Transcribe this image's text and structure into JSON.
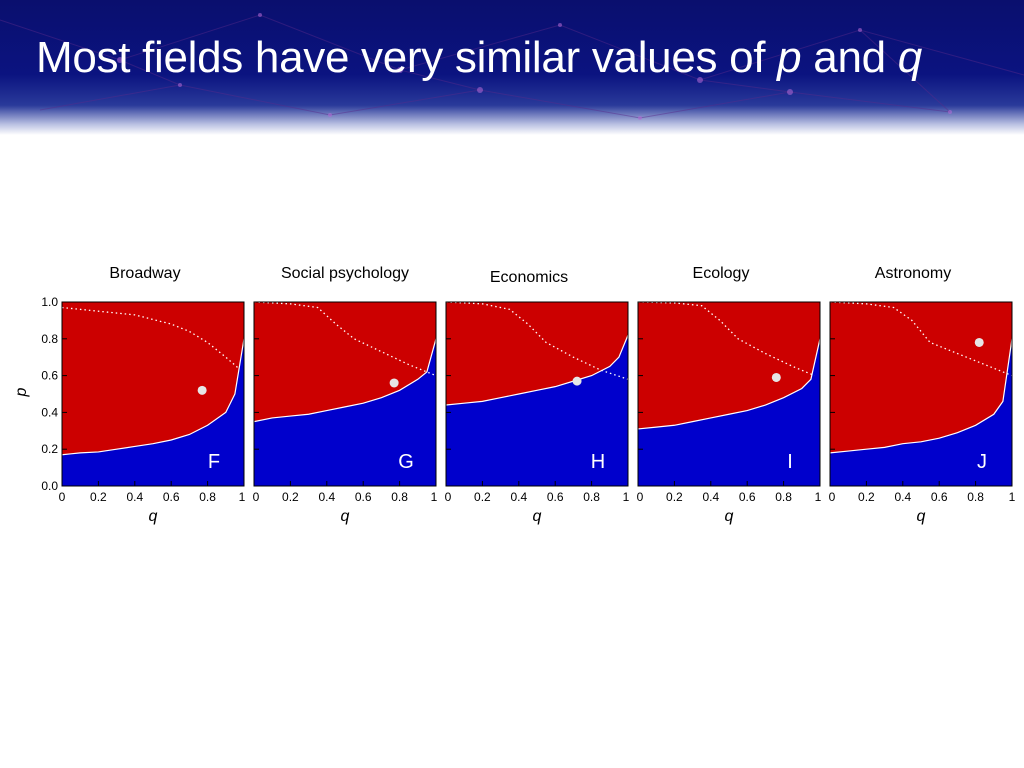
{
  "slide": {
    "title_pre": "Most fields have very similar values of ",
    "title_var1": "p",
    "title_mid": " and ",
    "title_var2": "q"
  },
  "colors": {
    "banner": "#0b1380",
    "upper_region": "#cc0000",
    "lower_region": "#0000cc",
    "boundary": "#ffffff",
    "marker": "#e6e6e6"
  },
  "chart_data": [
    {
      "type": "area",
      "title": "Broadway",
      "panel_label": "F",
      "xlabel": "q",
      "ylabel": "p",
      "xlim": [
        0,
        1
      ],
      "ylim": [
        0,
        1
      ],
      "x_ticks": [
        "0",
        "0.2",
        "0.4",
        "0.6",
        "0.8",
        "1"
      ],
      "y_ticks": [
        "0.0",
        "0.2",
        "0.4",
        "0.6",
        "0.8",
        "1.0"
      ],
      "boundary": [
        [
          0,
          0.17
        ],
        [
          0.05,
          0.175
        ],
        [
          0.1,
          0.18
        ],
        [
          0.2,
          0.185
        ],
        [
          0.3,
          0.2
        ],
        [
          0.4,
          0.215
        ],
        [
          0.5,
          0.23
        ],
        [
          0.6,
          0.25
        ],
        [
          0.7,
          0.28
        ],
        [
          0.8,
          0.33
        ],
        [
          0.9,
          0.4
        ],
        [
          0.95,
          0.5
        ],
        [
          1,
          0.8
        ]
      ],
      "dotted_curve": [
        [
          0,
          0.97
        ],
        [
          0.2,
          0.95
        ],
        [
          0.4,
          0.93
        ],
        [
          0.6,
          0.88
        ],
        [
          0.7,
          0.84
        ],
        [
          0.8,
          0.78
        ],
        [
          0.9,
          0.7
        ],
        [
          0.97,
          0.64
        ]
      ],
      "point": [
        0.77,
        0.52
      ]
    },
    {
      "type": "area",
      "title": "Social psychology",
      "panel_label": "G",
      "xlabel": "q",
      "ylabel": "p",
      "xlim": [
        0,
        1
      ],
      "ylim": [
        0,
        1
      ],
      "x_ticks": [
        "0",
        "0.2",
        "0.4",
        "0.6",
        "0.8",
        "1"
      ],
      "y_ticks": [
        "0.0",
        "0.2",
        "0.4",
        "0.6",
        "0.8",
        "1.0"
      ],
      "boundary": [
        [
          0,
          0.35
        ],
        [
          0.1,
          0.37
        ],
        [
          0.2,
          0.38
        ],
        [
          0.3,
          0.39
        ],
        [
          0.4,
          0.41
        ],
        [
          0.5,
          0.43
        ],
        [
          0.6,
          0.45
        ],
        [
          0.7,
          0.48
        ],
        [
          0.8,
          0.52
        ],
        [
          0.9,
          0.58
        ],
        [
          0.95,
          0.62
        ],
        [
          1,
          0.8
        ]
      ],
      "dotted_curve": [
        [
          0,
          1
        ],
        [
          0.2,
          0.99
        ],
        [
          0.35,
          0.97
        ],
        [
          0.45,
          0.88
        ],
        [
          0.55,
          0.8
        ],
        [
          0.7,
          0.73
        ],
        [
          0.85,
          0.66
        ],
        [
          1,
          0.6
        ]
      ],
      "point": [
        0.77,
        0.56
      ]
    },
    {
      "type": "area",
      "title": "Economics",
      "panel_label": "H",
      "xlabel": "q",
      "ylabel": "p",
      "xlim": [
        0,
        1
      ],
      "ylim": [
        0,
        1
      ],
      "x_ticks": [
        "0",
        "0.2",
        "0.4",
        "0.6",
        "0.8",
        "1"
      ],
      "y_ticks": [
        "0.0",
        "0.2",
        "0.4",
        "0.6",
        "0.8",
        "1.0"
      ],
      "boundary": [
        [
          0,
          0.44
        ],
        [
          0.1,
          0.45
        ],
        [
          0.2,
          0.46
        ],
        [
          0.3,
          0.48
        ],
        [
          0.4,
          0.5
        ],
        [
          0.5,
          0.52
        ],
        [
          0.6,
          0.54
        ],
        [
          0.7,
          0.57
        ],
        [
          0.8,
          0.6
        ],
        [
          0.9,
          0.65
        ],
        [
          0.95,
          0.7
        ],
        [
          1,
          0.82
        ]
      ],
      "dotted_curve": [
        [
          0,
          1
        ],
        [
          0.2,
          0.99
        ],
        [
          0.35,
          0.96
        ],
        [
          0.45,
          0.88
        ],
        [
          0.55,
          0.78
        ],
        [
          0.7,
          0.7
        ],
        [
          0.85,
          0.63
        ],
        [
          1,
          0.58
        ]
      ],
      "point": [
        0.72,
        0.57
      ]
    },
    {
      "type": "area",
      "title": "Ecology",
      "panel_label": "I",
      "xlabel": "q",
      "ylabel": "p",
      "xlim": [
        0,
        1
      ],
      "ylim": [
        0,
        1
      ],
      "x_ticks": [
        "0",
        "0.2",
        "0.4",
        "0.6",
        "0.8",
        "1"
      ],
      "y_ticks": [
        "0.0",
        "0.2",
        "0.4",
        "0.6",
        "0.8",
        "1.0"
      ],
      "boundary": [
        [
          0,
          0.31
        ],
        [
          0.1,
          0.32
        ],
        [
          0.2,
          0.33
        ],
        [
          0.3,
          0.35
        ],
        [
          0.4,
          0.37
        ],
        [
          0.5,
          0.39
        ],
        [
          0.6,
          0.41
        ],
        [
          0.7,
          0.44
        ],
        [
          0.8,
          0.48
        ],
        [
          0.9,
          0.53
        ],
        [
          0.95,
          0.58
        ],
        [
          1,
          0.8
        ]
      ],
      "dotted_curve": [
        [
          0,
          1
        ],
        [
          0.2,
          0.995
        ],
        [
          0.35,
          0.98
        ],
        [
          0.45,
          0.9
        ],
        [
          0.55,
          0.8
        ],
        [
          0.7,
          0.72
        ],
        [
          0.85,
          0.65
        ],
        [
          0.97,
          0.6
        ]
      ],
      "point": [
        0.76,
        0.59
      ]
    },
    {
      "type": "area",
      "title": "Astronomy",
      "panel_label": "J",
      "xlabel": "q",
      "ylabel": "p",
      "xlim": [
        0,
        1
      ],
      "ylim": [
        0,
        1
      ],
      "x_ticks": [
        "0",
        "0.2",
        "0.4",
        "0.6",
        "0.8",
        "1"
      ],
      "y_ticks": [
        "0.0",
        "0.2",
        "0.4",
        "0.6",
        "0.8",
        "1.0"
      ],
      "boundary": [
        [
          0,
          0.18
        ],
        [
          0.1,
          0.19
        ],
        [
          0.2,
          0.2
        ],
        [
          0.3,
          0.21
        ],
        [
          0.4,
          0.23
        ],
        [
          0.5,
          0.24
        ],
        [
          0.6,
          0.26
        ],
        [
          0.7,
          0.29
        ],
        [
          0.8,
          0.33
        ],
        [
          0.9,
          0.39
        ],
        [
          0.95,
          0.46
        ],
        [
          1,
          0.8
        ]
      ],
      "dotted_curve": [
        [
          0,
          1
        ],
        [
          0.2,
          0.99
        ],
        [
          0.35,
          0.97
        ],
        [
          0.45,
          0.9
        ],
        [
          0.55,
          0.78
        ],
        [
          0.7,
          0.72
        ],
        [
          0.85,
          0.66
        ],
        [
          1,
          0.6
        ]
      ],
      "point": [
        0.82,
        0.78
      ]
    }
  ]
}
